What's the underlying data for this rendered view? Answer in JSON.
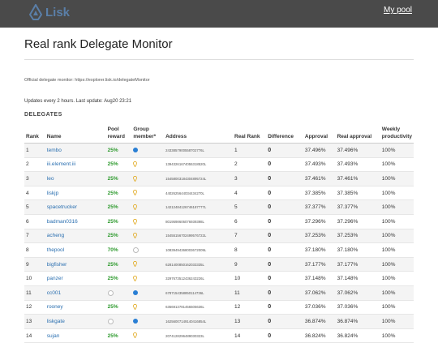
{
  "header": {
    "logo_text": "Lisk",
    "my_pool_label": "My pool"
  },
  "page": {
    "title": "Real rank Delegate Monitor",
    "official_text": "Official delegate monitor: https://explorer.lisk.io/delegateMonitor",
    "updates_text": "Updates every 2 hours. Last update: Aug20 23:21",
    "section_label": "DELEGATES"
  },
  "table": {
    "headers": {
      "rank": "Rank",
      "name": "Name",
      "pool_reward": "Pool reward",
      "group_member": "Group member*",
      "address": "Address",
      "real_rank": "Real Rank",
      "difference": "Difference",
      "approval": "Approval",
      "real_approval": "Real approval",
      "weekly": "Weekly productivity"
    },
    "rows": [
      {
        "rank": "1",
        "name": "tembo",
        "reward": "25%",
        "member": "blue",
        "address": "2433857900558702776L",
        "real_rank": "1",
        "diff": "0",
        "approval": "37.496%",
        "real_approval": "37.496%",
        "weekly": "100%"
      },
      {
        "rank": "2",
        "name": "iii.element.iii",
        "reward": "25%",
        "member": "pin",
        "address": "13943261674055318520L",
        "real_rank": "2",
        "diff": "0",
        "approval": "37.493%",
        "real_approval": "37.493%",
        "weekly": "100%"
      },
      {
        "rank": "3",
        "name": "leo",
        "reward": "25%",
        "member": "pin",
        "address": "15458003184304895724L",
        "real_rank": "3",
        "diff": "0",
        "approval": "37.461%",
        "real_approval": "37.461%",
        "weekly": "100%"
      },
      {
        "rank": "4",
        "name": "liskjp",
        "reward": "25%",
        "member": "pin",
        "address": "4402625644034434270L",
        "real_rank": "4",
        "diff": "0",
        "approval": "37.385%",
        "real_approval": "37.385%",
        "weekly": "100%"
      },
      {
        "rank": "5",
        "name": "spacetrucker",
        "reward": "25%",
        "member": "pin",
        "address": "14212484126746187777L",
        "real_rank": "5",
        "diff": "0",
        "approval": "37.377%",
        "real_approval": "37.377%",
        "weekly": "100%"
      },
      {
        "rank": "6",
        "name": "badman0316",
        "reward": "25%",
        "member": "pin",
        "address": "8019598606076939398L",
        "real_rank": "6",
        "diff": "0",
        "approval": "37.296%",
        "real_approval": "37.296%",
        "weekly": "100%"
      },
      {
        "rank": "7",
        "name": "acheng",
        "reward": "25%",
        "member": "pin",
        "address": "15455156702499576722L",
        "real_rank": "7",
        "diff": "0",
        "approval": "37.253%",
        "real_approval": "37.253%",
        "weekly": "100%"
      },
      {
        "rank": "8",
        "name": "thepool",
        "reward": "70%",
        "member": "empty",
        "address": "10839494368003672009L",
        "real_rank": "8",
        "diff": "0",
        "approval": "37.180%",
        "real_approval": "37.180%",
        "weekly": "100%"
      },
      {
        "rank": "9",
        "name": "bigfisher",
        "reward": "25%",
        "member": "pin",
        "address": "6281400850162033335L",
        "real_rank": "9",
        "diff": "0",
        "approval": "37.177%",
        "real_approval": "37.177%",
        "weekly": "100%"
      },
      {
        "rank": "10",
        "name": "panzer",
        "reward": "25%",
        "member": "pin",
        "address": "3297673512436243226L",
        "real_rank": "10",
        "diff": "0",
        "approval": "37.148%",
        "real_approval": "37.148%",
        "weekly": "100%"
      },
      {
        "rank": "11",
        "name": "cc001",
        "reward": "",
        "member": "blue",
        "address": "6787154358850114736L",
        "real_rank": "11",
        "diff": "0",
        "approval": "37.062%",
        "real_approval": "37.062%",
        "weekly": "100%"
      },
      {
        "rank": "12",
        "name": "rooney",
        "reward": "25%",
        "member": "pin",
        "address": "6356913781456505636L",
        "real_rank": "12",
        "diff": "0",
        "approval": "37.036%",
        "real_approval": "37.036%",
        "weekly": "100%"
      },
      {
        "rank": "13",
        "name": "liskgate",
        "reward": "",
        "member": "blue",
        "address": "16256007149140416854L",
        "real_rank": "13",
        "diff": "0",
        "approval": "36.874%",
        "real_approval": "36.874%",
        "weekly": "100%"
      },
      {
        "rank": "14",
        "name": "sujan",
        "reward": "25%",
        "member": "pin",
        "address": "2074128296489030323L",
        "real_rank": "14",
        "diff": "0",
        "approval": "36.824%",
        "real_approval": "36.824%",
        "weekly": "100%"
      }
    ]
  }
}
